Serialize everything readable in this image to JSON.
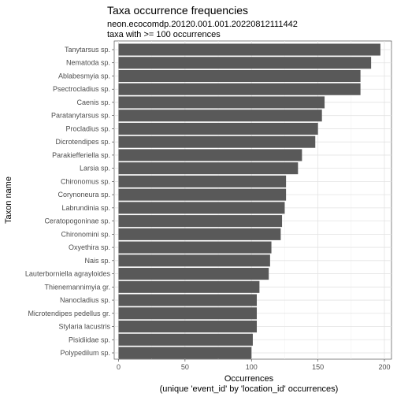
{
  "chart_data": {
    "type": "bar",
    "orientation": "horizontal",
    "title": "Taxa occurrence frequencies",
    "subtitle_lines": [
      "neon.ecocomdp.20120.001.001.20220812111442",
      "taxa with >= 100 occurrences"
    ],
    "xlabel_lines": [
      "Occurrences",
      "(unique 'event_id' by 'location_id' occurrences)"
    ],
    "ylabel": "Taxon name",
    "xlim": [
      0,
      200
    ],
    "xticks": [
      0,
      50,
      100,
      150,
      200
    ],
    "grid": true,
    "bar_color": "#595959",
    "categories": [
      "Tanytarsus sp.",
      "Nematoda sp.",
      "Ablabesmyia sp.",
      "Psectrocladius sp.",
      "Caenis sp.",
      "Paratanytarsus sp.",
      "Procladius sp.",
      "Dicrotendipes sp.",
      "Parakiefferiella sp.",
      "Larsia sp.",
      "Chironomus sp.",
      "Corynoneura sp.",
      "Labrundinia sp.",
      "Ceratopogoninae sp.",
      "Chironomini sp.",
      "Oxyethira sp.",
      "Nais sp.",
      "Lauterborniella agrayloides",
      "Thienemannimyia gr.",
      "Nanocladius sp.",
      "Microtendipes pedellus gr.",
      "Stylaria lacustris",
      "Pisidiidae sp.",
      "Polypedilum sp."
    ],
    "values": [
      197,
      190,
      182,
      182,
      155,
      153,
      150,
      148,
      138,
      135,
      126,
      126,
      125,
      123,
      122,
      115,
      114,
      113,
      106,
      104,
      104,
      104,
      101,
      100
    ]
  }
}
